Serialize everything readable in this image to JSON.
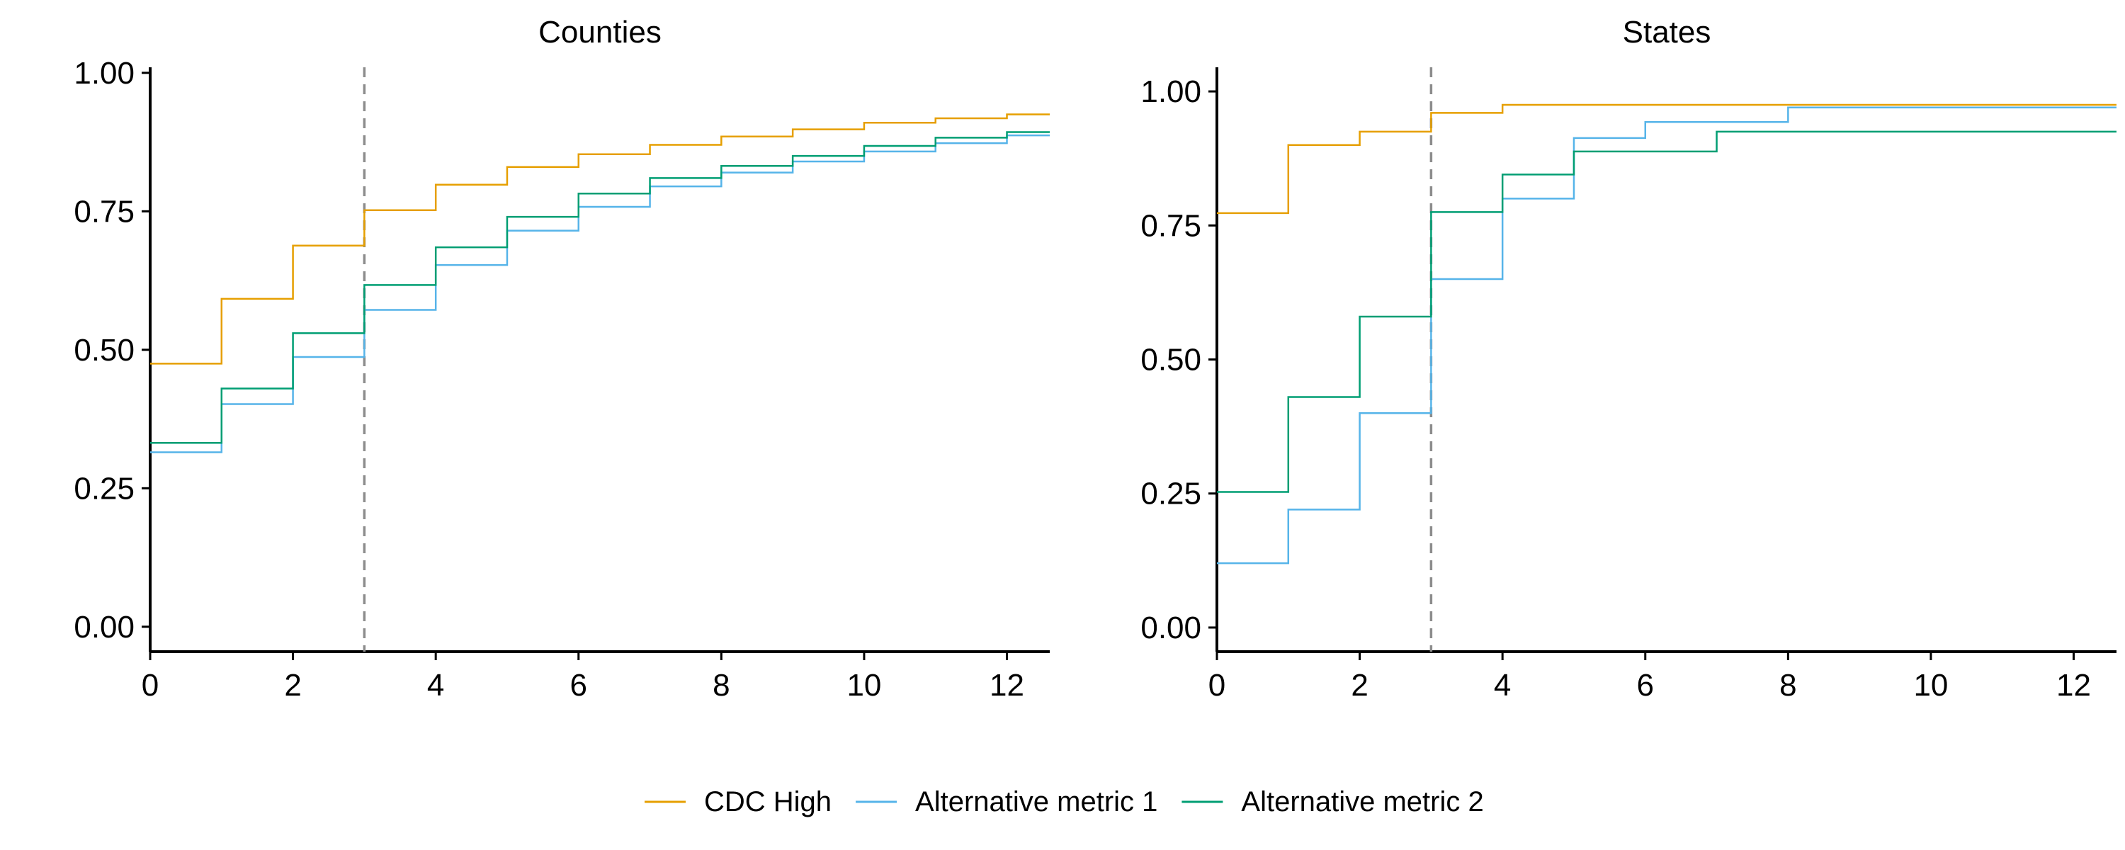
{
  "chart_data": [
    {
      "type": "line",
      "title": "Counties",
      "xlabel": "",
      "ylabel": "",
      "xlim": [
        0,
        12.6
      ],
      "ylim": [
        -0.045,
        1.01
      ],
      "x_ticks": [
        0,
        2,
        4,
        6,
        8,
        10,
        12
      ],
      "y_ticks": [
        0.0,
        0.25,
        0.5,
        0.75,
        1.0
      ],
      "x_tick_labels": [
        "0",
        "2",
        "4",
        "6",
        "8",
        "10",
        "12"
      ],
      "y_tick_labels": [
        "0.00",
        "0.25",
        "0.50",
        "0.75",
        "1.00"
      ],
      "step": true,
      "vline": {
        "x": 3,
        "style": "dashed",
        "color": "#8c8c8c"
      },
      "grid": false,
      "legend": "bottom",
      "x": [
        0,
        1,
        2,
        3,
        4,
        5,
        6,
        7,
        8,
        9,
        10,
        11,
        12
      ],
      "series": [
        {
          "name": "CDC High",
          "color": "#e69f00",
          "values": [
            0.475,
            0.592,
            0.688,
            0.752,
            0.798,
            0.83,
            0.853,
            0.87,
            0.885,
            0.898,
            0.91,
            0.918,
            0.925
          ]
        },
        {
          "name": "Alternative metric 1",
          "color": "#56b4e9",
          "values": [
            0.315,
            0.402,
            0.487,
            0.572,
            0.653,
            0.715,
            0.758,
            0.795,
            0.82,
            0.84,
            0.858,
            0.873,
            0.887
          ]
        },
        {
          "name": "Alternative metric 2",
          "color": "#009e73",
          "values": [
            0.332,
            0.43,
            0.53,
            0.617,
            0.685,
            0.74,
            0.782,
            0.81,
            0.832,
            0.85,
            0.868,
            0.883,
            0.893
          ]
        }
      ]
    },
    {
      "type": "line",
      "title": "States",
      "xlabel": "",
      "ylabel": "",
      "xlim": [
        0,
        12.6
      ],
      "ylim": [
        -0.045,
        1.045
      ],
      "x_ticks": [
        0,
        2,
        4,
        6,
        8,
        10,
        12
      ],
      "y_ticks": [
        0.0,
        0.25,
        0.5,
        0.75,
        1.0
      ],
      "x_tick_labels": [
        "0",
        "2",
        "4",
        "6",
        "8",
        "10",
        "12"
      ],
      "y_tick_labels": [
        "0.00",
        "0.25",
        "0.50",
        "0.75",
        "1.00"
      ],
      "step": true,
      "vline": {
        "x": 3,
        "style": "dashed",
        "color": "#8c8c8c"
      },
      "grid": false,
      "legend": "bottom",
      "x": [
        0,
        1,
        2,
        3,
        4,
        5,
        6,
        7,
        8,
        9,
        10,
        11,
        12
      ],
      "series": [
        {
          "name": "CDC High",
          "color": "#e69f00",
          "values": [
            0.773,
            0.9,
            0.925,
            0.96,
            0.975,
            0.975,
            0.975,
            0.975,
            0.975,
            0.975,
            0.975,
            0.975,
            0.975
          ]
        },
        {
          "name": "Alternative metric 1",
          "color": "#56b4e9",
          "values": [
            0.12,
            0.22,
            0.4,
            0.65,
            0.8,
            0.913,
            0.943,
            0.943,
            0.97,
            0.97,
            0.97,
            0.97,
            0.97
          ]
        },
        {
          "name": "Alternative metric 2",
          "color": "#009e73",
          "values": [
            0.253,
            0.43,
            0.58,
            0.775,
            0.845,
            0.888,
            0.888,
            0.925,
            0.925,
            0.925,
            0.925,
            0.925,
            0.925
          ]
        }
      ]
    }
  ],
  "legend": {
    "items": [
      {
        "label": "CDC High",
        "color": "#e69f00"
      },
      {
        "label": "Alternative metric 1",
        "color": "#56b4e9"
      },
      {
        "label": "Alternative metric 2",
        "color": "#009e73"
      }
    ]
  }
}
